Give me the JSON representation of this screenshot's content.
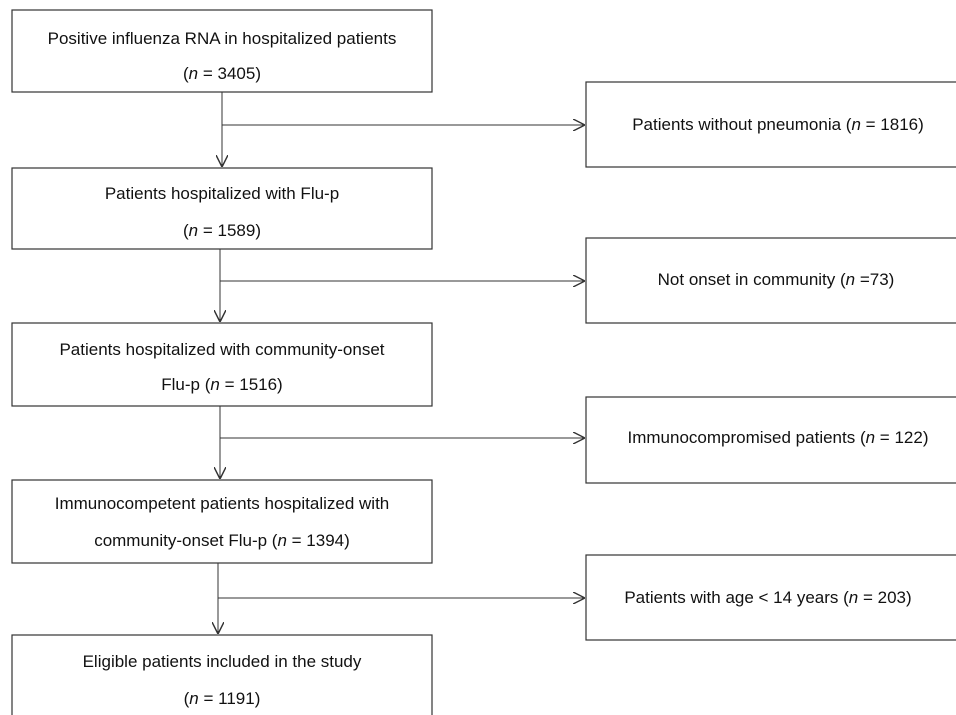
{
  "nodes": [
    {
      "lines": [
        [
          "Positive influenza  RNA in hospitalized patients"
        ],
        [
          "(",
          "n",
          " = 3405)"
        ]
      ]
    },
    {
      "lines": [
        [
          "Patients hospitalized with Flu-p"
        ],
        [
          "(",
          "n",
          " = 1589)"
        ]
      ]
    },
    {
      "lines": [
        [
          "Patients hospitalized with community-onset"
        ],
        [
          "Flu-p (",
          "n",
          " = 1516)"
        ]
      ]
    },
    {
      "lines": [
        [
          "Immunocompetent patients hospitalized with"
        ],
        [
          "community-onset Flu-p (",
          "n",
          " = 1394)"
        ]
      ]
    },
    {
      "lines": [
        [
          "Eligible patients included in the study"
        ],
        [
          "(",
          "n",
          " = 1191)"
        ]
      ]
    }
  ],
  "exclusions": [
    {
      "lines": [
        [
          "Patients without pneumonia (",
          "n",
          " = 1816)"
        ]
      ]
    },
    {
      "lines": [
        [
          "Not onset in community (",
          "n",
          " =73)"
        ]
      ]
    },
    {
      "lines": [
        [
          "Immunocompromised patients  (",
          "n",
          " = 122)"
        ]
      ]
    },
    {
      "lines": [
        [
          "Patients with age < 14 years (",
          "n",
          " = 203)"
        ]
      ]
    }
  ]
}
